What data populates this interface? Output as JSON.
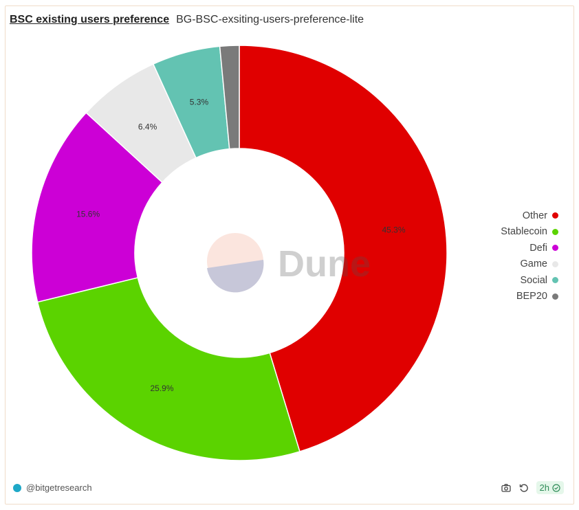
{
  "header": {
    "title": "BSC existing users preference",
    "subtitle": "BG-BSC-exsiting-users-preference-lite"
  },
  "watermark": {
    "text": "Dune"
  },
  "footer": {
    "author": "@bitgetresearch",
    "age": "2h",
    "icons": [
      "camera-icon",
      "refresh-icon",
      "check-circle-icon"
    ]
  },
  "chart_data": {
    "type": "pie",
    "donut": true,
    "title": "BSC existing users preference",
    "legend_position": "right",
    "slices": [
      {
        "label": "Other",
        "value": 45.3,
        "display": "45.3%",
        "color": "#e00000"
      },
      {
        "label": "Stablecoin",
        "value": 25.9,
        "display": "25.9%",
        "color": "#5bd300"
      },
      {
        "label": "Defi",
        "value": 15.6,
        "display": "15.6%",
        "color": "#cc00d6"
      },
      {
        "label": "Game",
        "value": 6.4,
        "display": "6.4%",
        "color": "#e8e8e8"
      },
      {
        "label": "Social",
        "value": 5.3,
        "display": "5.3%",
        "color": "#63c3b2"
      },
      {
        "label": "BEP20",
        "value": 1.5,
        "display": "",
        "color": "#7a7a7a"
      }
    ]
  }
}
